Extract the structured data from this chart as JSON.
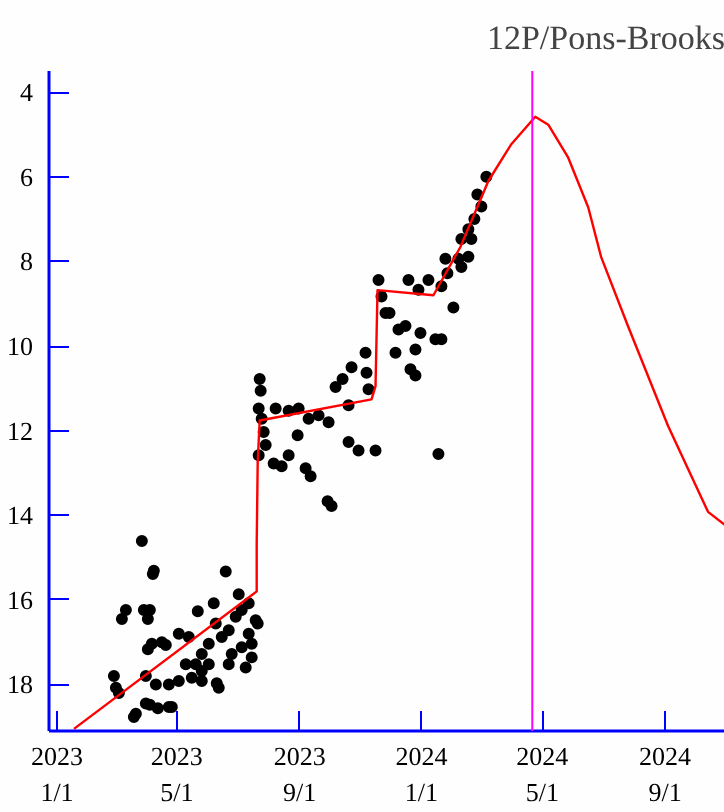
{
  "chart_data": {
    "type": "scatter",
    "title": "12P/Pons-Brooks",
    "xlim": [
      "2022-12-24",
      "2024-10-31"
    ],
    "ylim": [
      19.1,
      3.5
    ],
    "xticks": [
      {
        "value": "2023-01-01",
        "label": "2023\n1/1"
      },
      {
        "value": "2023-05-01",
        "label": "2023\n5/1"
      },
      {
        "value": "2023-09-01",
        "label": "2023\n9/1"
      },
      {
        "value": "2024-01-01",
        "label": "2024\n1/1"
      },
      {
        "value": "2024-05-01",
        "label": "2024\n5/1"
      },
      {
        "value": "2024-09-01",
        "label": "2024\n9/1"
      }
    ],
    "yticks": [
      4,
      6,
      8,
      10,
      12,
      14,
      16,
      18
    ],
    "grid": false,
    "marker": "circle",
    "ref_lines": [
      {
        "axis": "x",
        "value": "2024-04-21",
        "label": null,
        "color": "#ff00ff"
      }
    ],
    "series": [
      {
        "color": "#000000",
        "x": [
          "2023-02-27",
          "2023-03-01",
          "2023-03-04",
          "2023-03-19",
          "2023-03-21",
          "2023-03-27",
          "2023-03-07",
          "2023-03-11",
          "2023-03-29",
          "2023-04-04",
          "2023-04-02",
          "2023-04-07",
          "2023-04-08",
          "2023-04-02",
          "2023-04-06",
          "2023-04-16",
          "2023-04-20",
          "2023-03-31",
          "2023-04-10",
          "2023-03-31",
          "2023-04-04",
          "2023-04-12",
          "2023-04-23",
          "2023-04-26",
          "2023-04-23",
          "2023-05-03",
          "2023-05-03",
          "2023-05-13",
          "2023-05-20",
          "2023-05-22",
          "2023-05-16",
          "2023-05-26",
          "2023-05-26",
          "2023-06-02",
          "2023-06-07",
          "2023-06-10",
          "2023-06-12",
          "2023-06-19",
          "2023-06-09",
          "2023-06-15",
          "2023-06-22",
          "2023-06-29",
          "2023-07-02",
          "2023-07-05",
          "2023-07-09",
          "2023-07-12",
          "2023-07-15",
          "2023-07-19",
          "2023-07-21",
          "2023-06-02",
          "2023-05-26",
          "2023-05-10",
          "2023-06-25",
          "2023-07-05",
          "2023-07-12",
          "2023-06-22",
          "2023-07-15",
          "2023-07-23",
          "2023-07-24",
          "2023-07-22",
          "2023-07-25",
          "2023-07-27",
          "2023-07-22",
          "2023-07-29",
          "2023-08-06",
          "2023-08-14",
          "2023-08-21",
          "2023-08-30",
          "2023-09-07",
          "2023-09-12",
          "2023-09-29",
          "2023-10-03",
          "2023-08-08",
          "2023-08-21",
          "2023-08-31",
          "2023-09-10",
          "2023-09-20",
          "2023-09-30",
          "2023-10-07",
          "2023-10-14",
          "2023-10-20",
          "2023-10-20",
          "2023-10-23",
          "2023-10-30",
          "2023-11-06",
          "2023-11-07",
          "2023-11-09",
          "2023-11-16",
          "2023-11-19",
          "2023-11-22",
          "2023-11-26",
          "2023-11-30",
          "2023-12-06",
          "2023-12-09",
          "2023-12-16",
          "2023-12-19",
          "2023-12-26",
          "2023-12-29",
          "2023-12-31",
          "2024-01-08",
          "2023-12-21",
          "2023-12-26",
          "2024-01-15",
          "2024-01-18",
          "2024-01-21",
          "2024-02-02",
          "2024-01-21",
          "2024-01-27",
          "2024-02-10",
          "2024-02-17",
          "2024-03-06",
          "2024-02-26",
          "2024-03-01",
          "2024-02-23",
          "2024-02-17",
          "2024-02-10",
          "2024-02-07",
          "2024-01-25",
          "2024-02-20"
        ],
        "values": [
          17.8,
          18.08,
          18.2,
          18.77,
          18.69,
          14.61,
          16.45,
          16.24,
          16.24,
          16.24,
          16.45,
          15.39,
          15.31,
          17.17,
          17.04,
          17.0,
          17.07,
          17.8,
          18.0,
          18.45,
          18.48,
          18.56,
          18.53,
          18.53,
          18.0,
          17.92,
          16.8,
          16.88,
          17.52,
          16.27,
          17.84,
          17.92,
          17.28,
          17.04,
          16.08,
          17.97,
          18.08,
          15.33,
          16.56,
          16.88,
          16.72,
          16.4,
          15.87,
          16.24,
          17.6,
          16.08,
          17.04,
          16.48,
          16.56,
          17.52,
          17.68,
          17.52,
          17.28,
          17.12,
          16.8,
          17.52,
          17.36,
          10.78,
          11.06,
          11.48,
          11.72,
          12.03,
          12.58,
          12.34,
          12.78,
          12.84,
          12.58,
          12.11,
          12.89,
          13.08,
          13.67,
          13.78,
          11.48,
          11.53,
          11.48,
          11.72,
          11.64,
          11.8,
          10.97,
          10.78,
          11.4,
          12.27,
          10.5,
          12.47,
          10.16,
          10.63,
          11.02,
          12.47,
          8.44,
          8.83,
          9.22,
          9.22,
          10.16,
          9.61,
          9.53,
          8.44,
          10.08,
          8.67,
          9.69,
          8.44,
          10.55,
          10.7,
          9.84,
          12.55,
          9.84,
          9.09,
          8.59,
          8.28,
          8.13,
          7.89,
          6.0,
          6.42,
          6.7,
          7.0,
          7.24,
          7.47,
          7.94,
          7.94,
          7.47
        ]
      },
      {
        "type": "line",
        "color": "#ff0000",
        "line_style": "solid",
        "marker": "none",
        "x": [
          "2023-01-18",
          "2023-07-20",
          "2023-07-20",
          "2023-07-21",
          "2023-07-23",
          "2023-11-12",
          "2023-11-16",
          "2023-11-18",
          "2024-01-13",
          "2024-02-09",
          "2024-03-08",
          "2024-03-31",
          "2024-04-24",
          "2024-05-07",
          "2024-05-27",
          "2024-06-16",
          "2024-06-29",
          "2024-07-26",
          "2024-09-04",
          "2024-10-14",
          "2024-10-31"
        ],
        "values": [
          19.05,
          15.8,
          14.7,
          12.75,
          11.76,
          11.26,
          10.95,
          8.68,
          8.8,
          7.66,
          6.1,
          5.23,
          4.58,
          4.77,
          5.55,
          6.72,
          7.9,
          9.54,
          11.89,
          13.92,
          14.23
        ]
      }
    ]
  }
}
